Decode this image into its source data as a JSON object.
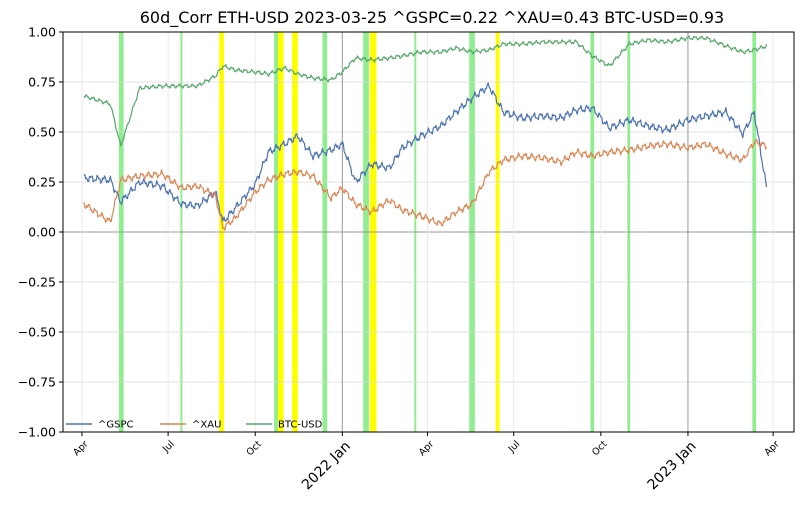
{
  "chart_data": {
    "type": "line",
    "title": "60d_Corr ETH-USD 2023-03-25 ^GSPC=0.22 ^XAU=0.43 BTC-USD=0.93",
    "xlabel": "",
    "ylabel": "",
    "xlim": [
      "2021-03-12",
      "2023-04-23"
    ],
    "ylim": [
      -1.0,
      1.0
    ],
    "y_ticks": [
      1.0,
      0.75,
      0.5,
      0.25,
      0.0,
      -0.25,
      -0.5,
      -0.75,
      -1.0
    ],
    "y_tick_labels": [
      "1.00",
      "0.75",
      "0.50",
      "0.25",
      "0.00",
      "−0.25",
      "−0.50",
      "−0.75",
      "−1.00"
    ],
    "x_ticks": [
      {
        "date": "2021-04-01",
        "label": "Apr",
        "major": false
      },
      {
        "date": "2021-07-01",
        "label": "Jul",
        "major": false
      },
      {
        "date": "2021-10-01",
        "label": "Oct",
        "major": false
      },
      {
        "date": "2022-01-01",
        "label": "2022 Jan",
        "major": true
      },
      {
        "date": "2022-04-01",
        "label": "Apr",
        "major": false
      },
      {
        "date": "2022-07-01",
        "label": "Jul",
        "major": false
      },
      {
        "date": "2022-10-01",
        "label": "Oct",
        "major": false
      },
      {
        "date": "2023-01-01",
        "label": "2023 Jan",
        "major": true
      },
      {
        "date": "2023-04-01",
        "label": "Apr",
        "major": false
      }
    ],
    "grid": true,
    "legend": "bottom-left",
    "colors": {
      "gspc": "#4c72b0",
      "xau": "#dd8452",
      "btc": "#55a868",
      "green_band": "#90ee90",
      "yellow_band": "#ffff00"
    },
    "bands": [
      {
        "start": "2021-05-10",
        "end": "2021-05-15",
        "color": "green"
      },
      {
        "start": "2021-07-14",
        "end": "2021-07-16",
        "color": "green"
      },
      {
        "start": "2021-08-24",
        "end": "2021-08-29",
        "color": "yellow"
      },
      {
        "start": "2021-10-21",
        "end": "2021-10-25",
        "color": "green"
      },
      {
        "start": "2021-10-25",
        "end": "2021-10-31",
        "color": "yellow"
      },
      {
        "start": "2021-11-09",
        "end": "2021-11-15",
        "color": "yellow"
      },
      {
        "start": "2021-12-11",
        "end": "2021-12-16",
        "color": "green"
      },
      {
        "start": "2022-01-23",
        "end": "2022-01-29",
        "color": "green"
      },
      {
        "start": "2022-01-30",
        "end": "2022-02-06",
        "color": "yellow"
      },
      {
        "start": "2022-03-18",
        "end": "2022-03-20",
        "color": "green"
      },
      {
        "start": "2022-05-15",
        "end": "2022-05-21",
        "color": "green"
      },
      {
        "start": "2022-06-12",
        "end": "2022-06-16",
        "color": "yellow"
      },
      {
        "start": "2022-09-20",
        "end": "2022-09-24",
        "color": "green"
      },
      {
        "start": "2022-10-29",
        "end": "2022-11-01",
        "color": "green"
      },
      {
        "start": "2023-03-10",
        "end": "2023-03-14",
        "color": "green"
      }
    ],
    "x_keypoints": [
      "2021-03-12",
      "2021-04-03",
      "2021-05-01",
      "2021-05-12",
      "2021-06-01",
      "2021-06-25",
      "2021-07-15",
      "2021-08-01",
      "2021-08-20",
      "2021-08-28",
      "2021-09-10",
      "2021-10-01",
      "2021-10-15",
      "2021-11-01",
      "2021-11-15",
      "2021-12-01",
      "2021-12-20",
      "2022-01-01",
      "2022-01-15",
      "2022-02-01",
      "2022-02-20",
      "2022-03-05",
      "2022-03-25",
      "2022-04-15",
      "2022-05-01",
      "2022-05-18",
      "2022-06-05",
      "2022-06-20",
      "2022-07-10",
      "2022-08-01",
      "2022-08-20",
      "2022-09-05",
      "2022-09-22",
      "2022-10-10",
      "2022-10-31",
      "2022-11-20",
      "2022-12-10",
      "2023-01-01",
      "2023-01-20",
      "2023-02-10",
      "2023-02-28",
      "2023-03-12",
      "2023-03-25"
    ],
    "series": [
      {
        "name": "^GSPC",
        "values": [
          null,
          0.27,
          0.26,
          0.15,
          0.25,
          0.23,
          0.14,
          0.13,
          0.2,
          0.05,
          0.12,
          0.24,
          0.4,
          0.44,
          0.48,
          0.38,
          0.41,
          0.44,
          0.25,
          0.34,
          0.32,
          0.42,
          0.48,
          0.53,
          0.6,
          0.67,
          0.73,
          0.6,
          0.57,
          0.58,
          0.57,
          0.61,
          0.62,
          0.52,
          0.56,
          0.53,
          0.51,
          0.56,
          0.58,
          0.6,
          0.49,
          0.6,
          0.22
        ]
      },
      {
        "name": "^XAU",
        "values": [
          null,
          0.14,
          0.05,
          0.26,
          0.28,
          0.29,
          0.22,
          0.23,
          0.18,
          0.02,
          0.07,
          0.2,
          0.26,
          0.29,
          0.3,
          0.28,
          0.17,
          0.22,
          0.14,
          0.1,
          0.16,
          0.11,
          0.08,
          0.04,
          0.1,
          0.14,
          0.3,
          0.36,
          0.38,
          0.37,
          0.35,
          0.4,
          0.38,
          0.4,
          0.41,
          0.43,
          0.44,
          0.42,
          0.44,
          0.39,
          0.36,
          0.45,
          0.43
        ]
      },
      {
        "name": "BTC-USD",
        "values": [
          null,
          0.68,
          0.64,
          0.43,
          0.72,
          0.73,
          0.73,
          0.73,
          0.78,
          0.83,
          0.81,
          0.8,
          0.79,
          0.82,
          0.79,
          0.77,
          0.76,
          0.8,
          0.87,
          0.86,
          0.87,
          0.88,
          0.9,
          0.9,
          0.92,
          0.9,
          0.91,
          0.94,
          0.94,
          0.95,
          0.95,
          0.95,
          0.88,
          0.83,
          0.94,
          0.96,
          0.95,
          0.97,
          0.97,
          0.93,
          0.9,
          0.91,
          0.93
        ]
      }
    ]
  }
}
